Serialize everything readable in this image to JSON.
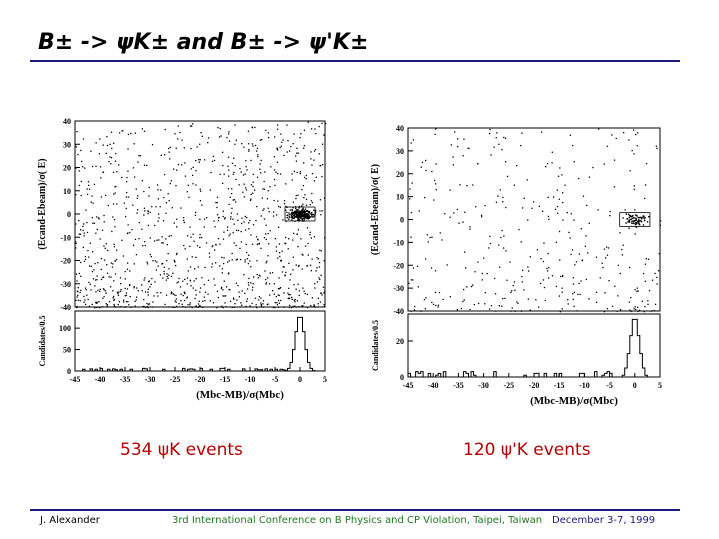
{
  "slide": {
    "title": "B± -> ψK± and B± -> ψ'K±",
    "caption_left": "534 ψK events",
    "caption_right": "120 ψ'K events",
    "footer_left": "J. Alexander",
    "footer_center": "3rd International Conference on B Physics and CP Violation, Taipei, Taiwan",
    "footer_right": "December 3-7, 1999",
    "colors": {
      "title_rule": "#1a1a7a",
      "caption": "#b30000",
      "footer_center": "#1f7a1f"
    }
  },
  "chart_data": [
    {
      "type": "scatter",
      "ylabel": "(Ecand-Ebeam)/σ( E)",
      "y_ticks": [
        40,
        30,
        20,
        10,
        0,
        -10,
        -20,
        -30,
        -40
      ],
      "xlim": [
        -45,
        5
      ],
      "ylim": [
        -40,
        40
      ],
      "signal_box": {
        "x": [
          -3,
          3
        ],
        "y": [
          -3,
          3
        ]
      },
      "n_events": 534
    },
    {
      "type": "bar",
      "xlabel": "(Mbc-MB)/σ(Mbc)",
      "ylabel": "Candidates/0.5",
      "x_ticks": [
        -45,
        -40,
        -35,
        -30,
        -25,
        -20,
        -15,
        -10,
        -5,
        0,
        5
      ],
      "y_ticks": [
        0,
        50,
        100
      ],
      "xlim": [
        -45,
        5
      ],
      "ylim": [
        0,
        140
      ]
    },
    {
      "type": "scatter",
      "ylabel": "(Ecand-Ebeam)/σ( E)",
      "y_ticks": [
        40,
        30,
        20,
        10,
        0,
        -10,
        -20,
        -30,
        -40
      ],
      "xlim": [
        -45,
        5
      ],
      "ylim": [
        -40,
        40
      ],
      "signal_box": {
        "x": [
          -3,
          3
        ],
        "y": [
          -3,
          3
        ]
      },
      "n_events": 120
    },
    {
      "type": "bar",
      "xlabel": "(Mbc-MB)/σ(Mbc)",
      "ylabel": "Candidates/0.5",
      "x_ticks": [
        -45,
        -40,
        -35,
        -30,
        -25,
        -20,
        -15,
        -10,
        -5,
        0,
        5
      ],
      "y_ticks": [
        0,
        20
      ],
      "xlim": [
        -45,
        5
      ],
      "ylim": [
        0,
        35
      ]
    }
  ]
}
